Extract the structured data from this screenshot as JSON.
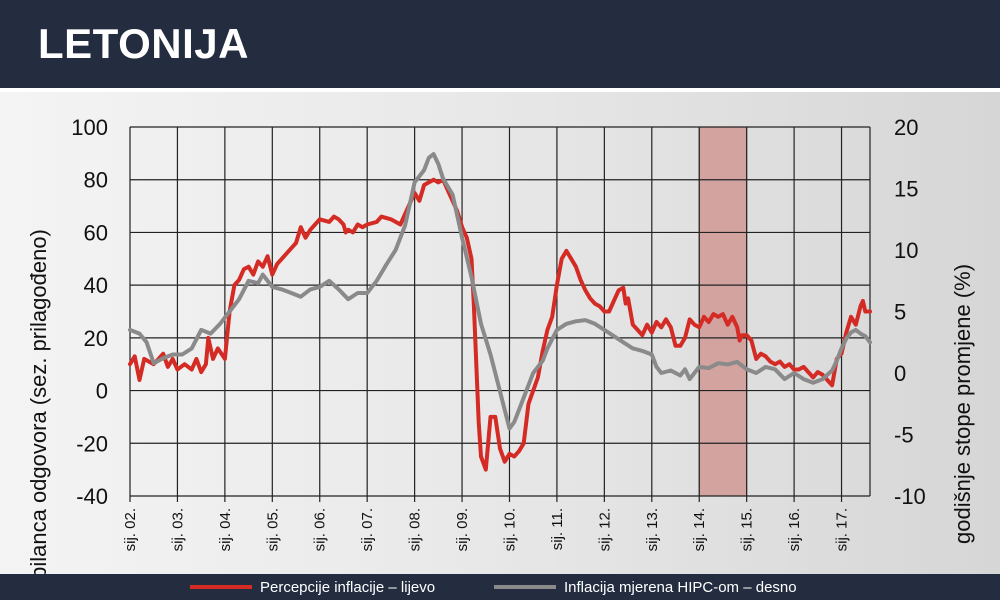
{
  "header": {
    "title": "LETONIJA"
  },
  "chart_data": {
    "type": "line",
    "title": "LETONIJA",
    "ylabel_left": "bilanca odgovora (sez. prilagođeno)",
    "ylabel_right": "godišnje stope promjene (%)",
    "ylim_left": [
      -40,
      100
    ],
    "ylim_right": [
      -10,
      20
    ],
    "yticks_left": [
      "100",
      "80",
      "60",
      "40",
      "20",
      "0",
      "-20",
      "-40"
    ],
    "yticks_right": [
      "20",
      "15",
      "10",
      "5",
      "0",
      "-5",
      "-10"
    ],
    "xlim": [
      2002.0,
      2017.6
    ],
    "xticks": [
      {
        "x": 2002,
        "label": "sij. 02."
      },
      {
        "x": 2003,
        "label": "sij. 03."
      },
      {
        "x": 2004,
        "label": "sij. 04."
      },
      {
        "x": 2005,
        "label": "sij. 05."
      },
      {
        "x": 2006,
        "label": "sij. 06."
      },
      {
        "x": 2007,
        "label": "sij. 07."
      },
      {
        "x": 2008,
        "label": "sij. 08."
      },
      {
        "x": 2009,
        "label": "sij. 09."
      },
      {
        "x": 2010,
        "label": "sij. 10."
      },
      {
        "x": 2011,
        "label": "sij. 11."
      },
      {
        "x": 2012,
        "label": "sij. 12."
      },
      {
        "x": 2013,
        "label": "sij. 13."
      },
      {
        "x": 2014,
        "label": "sij. 14."
      },
      {
        "x": 2015,
        "label": "sij. 15."
      },
      {
        "x": 2016,
        "label": "sij. 16."
      },
      {
        "x": 2017,
        "label": "sij. 17."
      }
    ],
    "shaded_period": [
      2014.0,
      2015.0
    ],
    "grid": true,
    "legend_position": "bottom",
    "series": [
      {
        "name": "Percepcije inflacije – lijevo",
        "axis": "left",
        "color": "#d42b25",
        "points": [
          [
            2002.0,
            10
          ],
          [
            2002.1,
            13
          ],
          [
            2002.2,
            4
          ],
          [
            2002.3,
            12
          ],
          [
            2002.5,
            10
          ],
          [
            2002.7,
            14
          ],
          [
            2002.8,
            9
          ],
          [
            2002.9,
            12
          ],
          [
            2003.0,
            8
          ],
          [
            2003.15,
            10
          ],
          [
            2003.3,
            8
          ],
          [
            2003.4,
            12
          ],
          [
            2003.5,
            7
          ],
          [
            2003.6,
            10
          ],
          [
            2003.65,
            20
          ],
          [
            2003.75,
            12
          ],
          [
            2003.85,
            16
          ],
          [
            2004.0,
            12
          ],
          [
            2004.1,
            30
          ],
          [
            2004.2,
            40
          ],
          [
            2004.3,
            42
          ],
          [
            2004.4,
            46
          ],
          [
            2004.5,
            47
          ],
          [
            2004.6,
            44
          ],
          [
            2004.7,
            49
          ],
          [
            2004.8,
            47
          ],
          [
            2004.9,
            51
          ],
          [
            2005.0,
            44
          ],
          [
            2005.1,
            48
          ],
          [
            2005.2,
            50
          ],
          [
            2005.4,
            54
          ],
          [
            2005.5,
            56
          ],
          [
            2005.6,
            62
          ],
          [
            2005.7,
            58
          ],
          [
            2005.8,
            61
          ],
          [
            2006.0,
            65
          ],
          [
            2006.2,
            64
          ],
          [
            2006.3,
            66
          ],
          [
            2006.4,
            65
          ],
          [
            2006.5,
            63
          ],
          [
            2006.55,
            60
          ],
          [
            2006.6,
            61
          ],
          [
            2006.7,
            60
          ],
          [
            2006.8,
            63
          ],
          [
            2006.9,
            62
          ],
          [
            2007.0,
            63
          ],
          [
            2007.2,
            64
          ],
          [
            2007.3,
            66
          ],
          [
            2007.5,
            65
          ],
          [
            2007.7,
            63
          ],
          [
            2007.8,
            67
          ],
          [
            2008.0,
            75
          ],
          [
            2008.1,
            72
          ],
          [
            2008.2,
            78
          ],
          [
            2008.3,
            79
          ],
          [
            2008.4,
            80
          ],
          [
            2008.5,
            79
          ],
          [
            2008.6,
            80
          ],
          [
            2008.7,
            76
          ],
          [
            2008.8,
            72
          ],
          [
            2008.9,
            68
          ],
          [
            2009.0,
            62
          ],
          [
            2009.1,
            58
          ],
          [
            2009.2,
            50
          ],
          [
            2009.25,
            32
          ],
          [
            2009.3,
            10
          ],
          [
            2009.35,
            -12
          ],
          [
            2009.4,
            -25
          ],
          [
            2009.5,
            -30
          ],
          [
            2009.6,
            -10
          ],
          [
            2009.7,
            -10
          ],
          [
            2009.8,
            -22
          ],
          [
            2009.9,
            -27
          ],
          [
            2010.0,
            -24
          ],
          [
            2010.1,
            -25
          ],
          [
            2010.2,
            -23
          ],
          [
            2010.3,
            -20
          ],
          [
            2010.4,
            -5
          ],
          [
            2010.5,
            0
          ],
          [
            2010.6,
            5
          ],
          [
            2010.7,
            15
          ],
          [
            2010.8,
            23
          ],
          [
            2010.9,
            28
          ],
          [
            2011.0,
            40
          ],
          [
            2011.1,
            50
          ],
          [
            2011.2,
            53
          ],
          [
            2011.3,
            50
          ],
          [
            2011.4,
            47
          ],
          [
            2011.5,
            42
          ],
          [
            2011.6,
            38
          ],
          [
            2011.7,
            35
          ],
          [
            2011.8,
            33
          ],
          [
            2011.9,
            32
          ],
          [
            2012.0,
            30
          ],
          [
            2012.1,
            30
          ],
          [
            2012.2,
            34
          ],
          [
            2012.3,
            38
          ],
          [
            2012.4,
            39
          ],
          [
            2012.45,
            33
          ],
          [
            2012.5,
            35
          ],
          [
            2012.6,
            25
          ],
          [
            2012.7,
            23
          ],
          [
            2012.8,
            21
          ],
          [
            2012.9,
            25
          ],
          [
            2013.0,
            22
          ],
          [
            2013.1,
            26
          ],
          [
            2013.2,
            24
          ],
          [
            2013.3,
            27
          ],
          [
            2013.4,
            24
          ],
          [
            2013.5,
            17
          ],
          [
            2013.6,
            17
          ],
          [
            2013.7,
            20
          ],
          [
            2013.8,
            27
          ],
          [
            2013.9,
            25
          ],
          [
            2014.0,
            24
          ],
          [
            2014.1,
            28
          ],
          [
            2014.2,
            26
          ],
          [
            2014.3,
            29
          ],
          [
            2014.4,
            28
          ],
          [
            2014.5,
            29
          ],
          [
            2014.6,
            25
          ],
          [
            2014.7,
            28
          ],
          [
            2014.8,
            24
          ],
          [
            2014.85,
            19
          ],
          [
            2014.9,
            21
          ],
          [
            2015.0,
            21
          ],
          [
            2015.1,
            19
          ],
          [
            2015.2,
            12
          ],
          [
            2015.3,
            14
          ],
          [
            2015.4,
            13
          ],
          [
            2015.5,
            11
          ],
          [
            2015.6,
            10
          ],
          [
            2015.7,
            11
          ],
          [
            2015.8,
            9
          ],
          [
            2015.9,
            10
          ],
          [
            2016.0,
            8
          ],
          [
            2016.1,
            8
          ],
          [
            2016.2,
            9
          ],
          [
            2016.4,
            5
          ],
          [
            2016.5,
            7
          ],
          [
            2016.6,
            6
          ],
          [
            2016.7,
            4
          ],
          [
            2016.8,
            2
          ],
          [
            2016.9,
            12
          ],
          [
            2017.0,
            14
          ],
          [
            2017.1,
            22
          ],
          [
            2017.2,
            28
          ],
          [
            2017.3,
            25
          ],
          [
            2017.4,
            32
          ],
          [
            2017.45,
            34
          ],
          [
            2017.5,
            30
          ],
          [
            2017.6,
            30
          ]
        ]
      },
      {
        "name": "Inflacija mjerena HIPC-om – desno",
        "axis": "right",
        "color": "#8a8a8a",
        "points": [
          [
            2002.0,
            3.5
          ],
          [
            2002.2,
            3.2
          ],
          [
            2002.35,
            2.5
          ],
          [
            2002.5,
            0.8
          ],
          [
            2002.7,
            1.2
          ],
          [
            2002.9,
            1.5
          ],
          [
            2003.1,
            1.5
          ],
          [
            2003.3,
            2.0
          ],
          [
            2003.5,
            3.5
          ],
          [
            2003.7,
            3.2
          ],
          [
            2003.9,
            4.0
          ],
          [
            2004.1,
            5.0
          ],
          [
            2004.3,
            6.0
          ],
          [
            2004.5,
            7.5
          ],
          [
            2004.7,
            7.3
          ],
          [
            2004.8,
            8.0
          ],
          [
            2005.0,
            7.0
          ],
          [
            2005.2,
            6.8
          ],
          [
            2005.4,
            6.5
          ],
          [
            2005.6,
            6.2
          ],
          [
            2005.8,
            6.8
          ],
          [
            2006.0,
            7.0
          ],
          [
            2006.2,
            7.5
          ],
          [
            2006.4,
            6.8
          ],
          [
            2006.6,
            6.0
          ],
          [
            2006.8,
            6.5
          ],
          [
            2007.0,
            6.5
          ],
          [
            2007.2,
            7.5
          ],
          [
            2007.4,
            8.8
          ],
          [
            2007.6,
            10.0
          ],
          [
            2007.8,
            12.0
          ],
          [
            2008.0,
            15.5
          ],
          [
            2008.2,
            16.5
          ],
          [
            2008.3,
            17.5
          ],
          [
            2008.4,
            17.8
          ],
          [
            2008.5,
            17.0
          ],
          [
            2008.6,
            15.8
          ],
          [
            2008.8,
            14.5
          ],
          [
            2009.0,
            11.0
          ],
          [
            2009.2,
            7.8
          ],
          [
            2009.4,
            4.0
          ],
          [
            2009.6,
            1.5
          ],
          [
            2009.8,
            -1.5
          ],
          [
            2009.9,
            -3.0
          ],
          [
            2010.0,
            -4.5
          ],
          [
            2010.1,
            -4.0
          ],
          [
            2010.2,
            -3.0
          ],
          [
            2010.3,
            -2.0
          ],
          [
            2010.5,
            0
          ],
          [
            2010.7,
            1.0
          ],
          [
            2010.8,
            2.0
          ],
          [
            2011.0,
            3.5
          ],
          [
            2011.2,
            4.0
          ],
          [
            2011.4,
            4.2
          ],
          [
            2011.6,
            4.3
          ],
          [
            2011.8,
            4.0
          ],
          [
            2012.0,
            3.5
          ],
          [
            2012.2,
            3.0
          ],
          [
            2012.4,
            2.5
          ],
          [
            2012.6,
            2.0
          ],
          [
            2012.8,
            1.8
          ],
          [
            2013.0,
            1.5
          ],
          [
            2013.1,
            0.5
          ],
          [
            2013.2,
            0.0
          ],
          [
            2013.4,
            0.2
          ],
          [
            2013.6,
            -0.2
          ],
          [
            2013.7,
            0.3
          ],
          [
            2013.8,
            -0.5
          ],
          [
            2014.0,
            0.5
          ],
          [
            2014.2,
            0.4
          ],
          [
            2014.4,
            0.8
          ],
          [
            2014.6,
            0.7
          ],
          [
            2014.8,
            0.9
          ],
          [
            2015.0,
            0.3
          ],
          [
            2015.2,
            0.0
          ],
          [
            2015.4,
            0.5
          ],
          [
            2015.6,
            0.3
          ],
          [
            2015.8,
            -0.5
          ],
          [
            2016.0,
            0.0
          ],
          [
            2016.2,
            -0.5
          ],
          [
            2016.4,
            -0.8
          ],
          [
            2016.6,
            -0.5
          ],
          [
            2016.8,
            0.2
          ],
          [
            2016.9,
            1.0
          ],
          [
            2017.0,
            2.0
          ],
          [
            2017.1,
            2.8
          ],
          [
            2017.2,
            3.3
          ],
          [
            2017.3,
            3.5
          ],
          [
            2017.4,
            3.2
          ],
          [
            2017.5,
            3.0
          ],
          [
            2017.6,
            2.5
          ]
        ]
      }
    ]
  },
  "legend": {
    "item1": "Percepcije inflacije – lijevo",
    "item2": "Inflacija mjerena HIPC-om – desno"
  }
}
